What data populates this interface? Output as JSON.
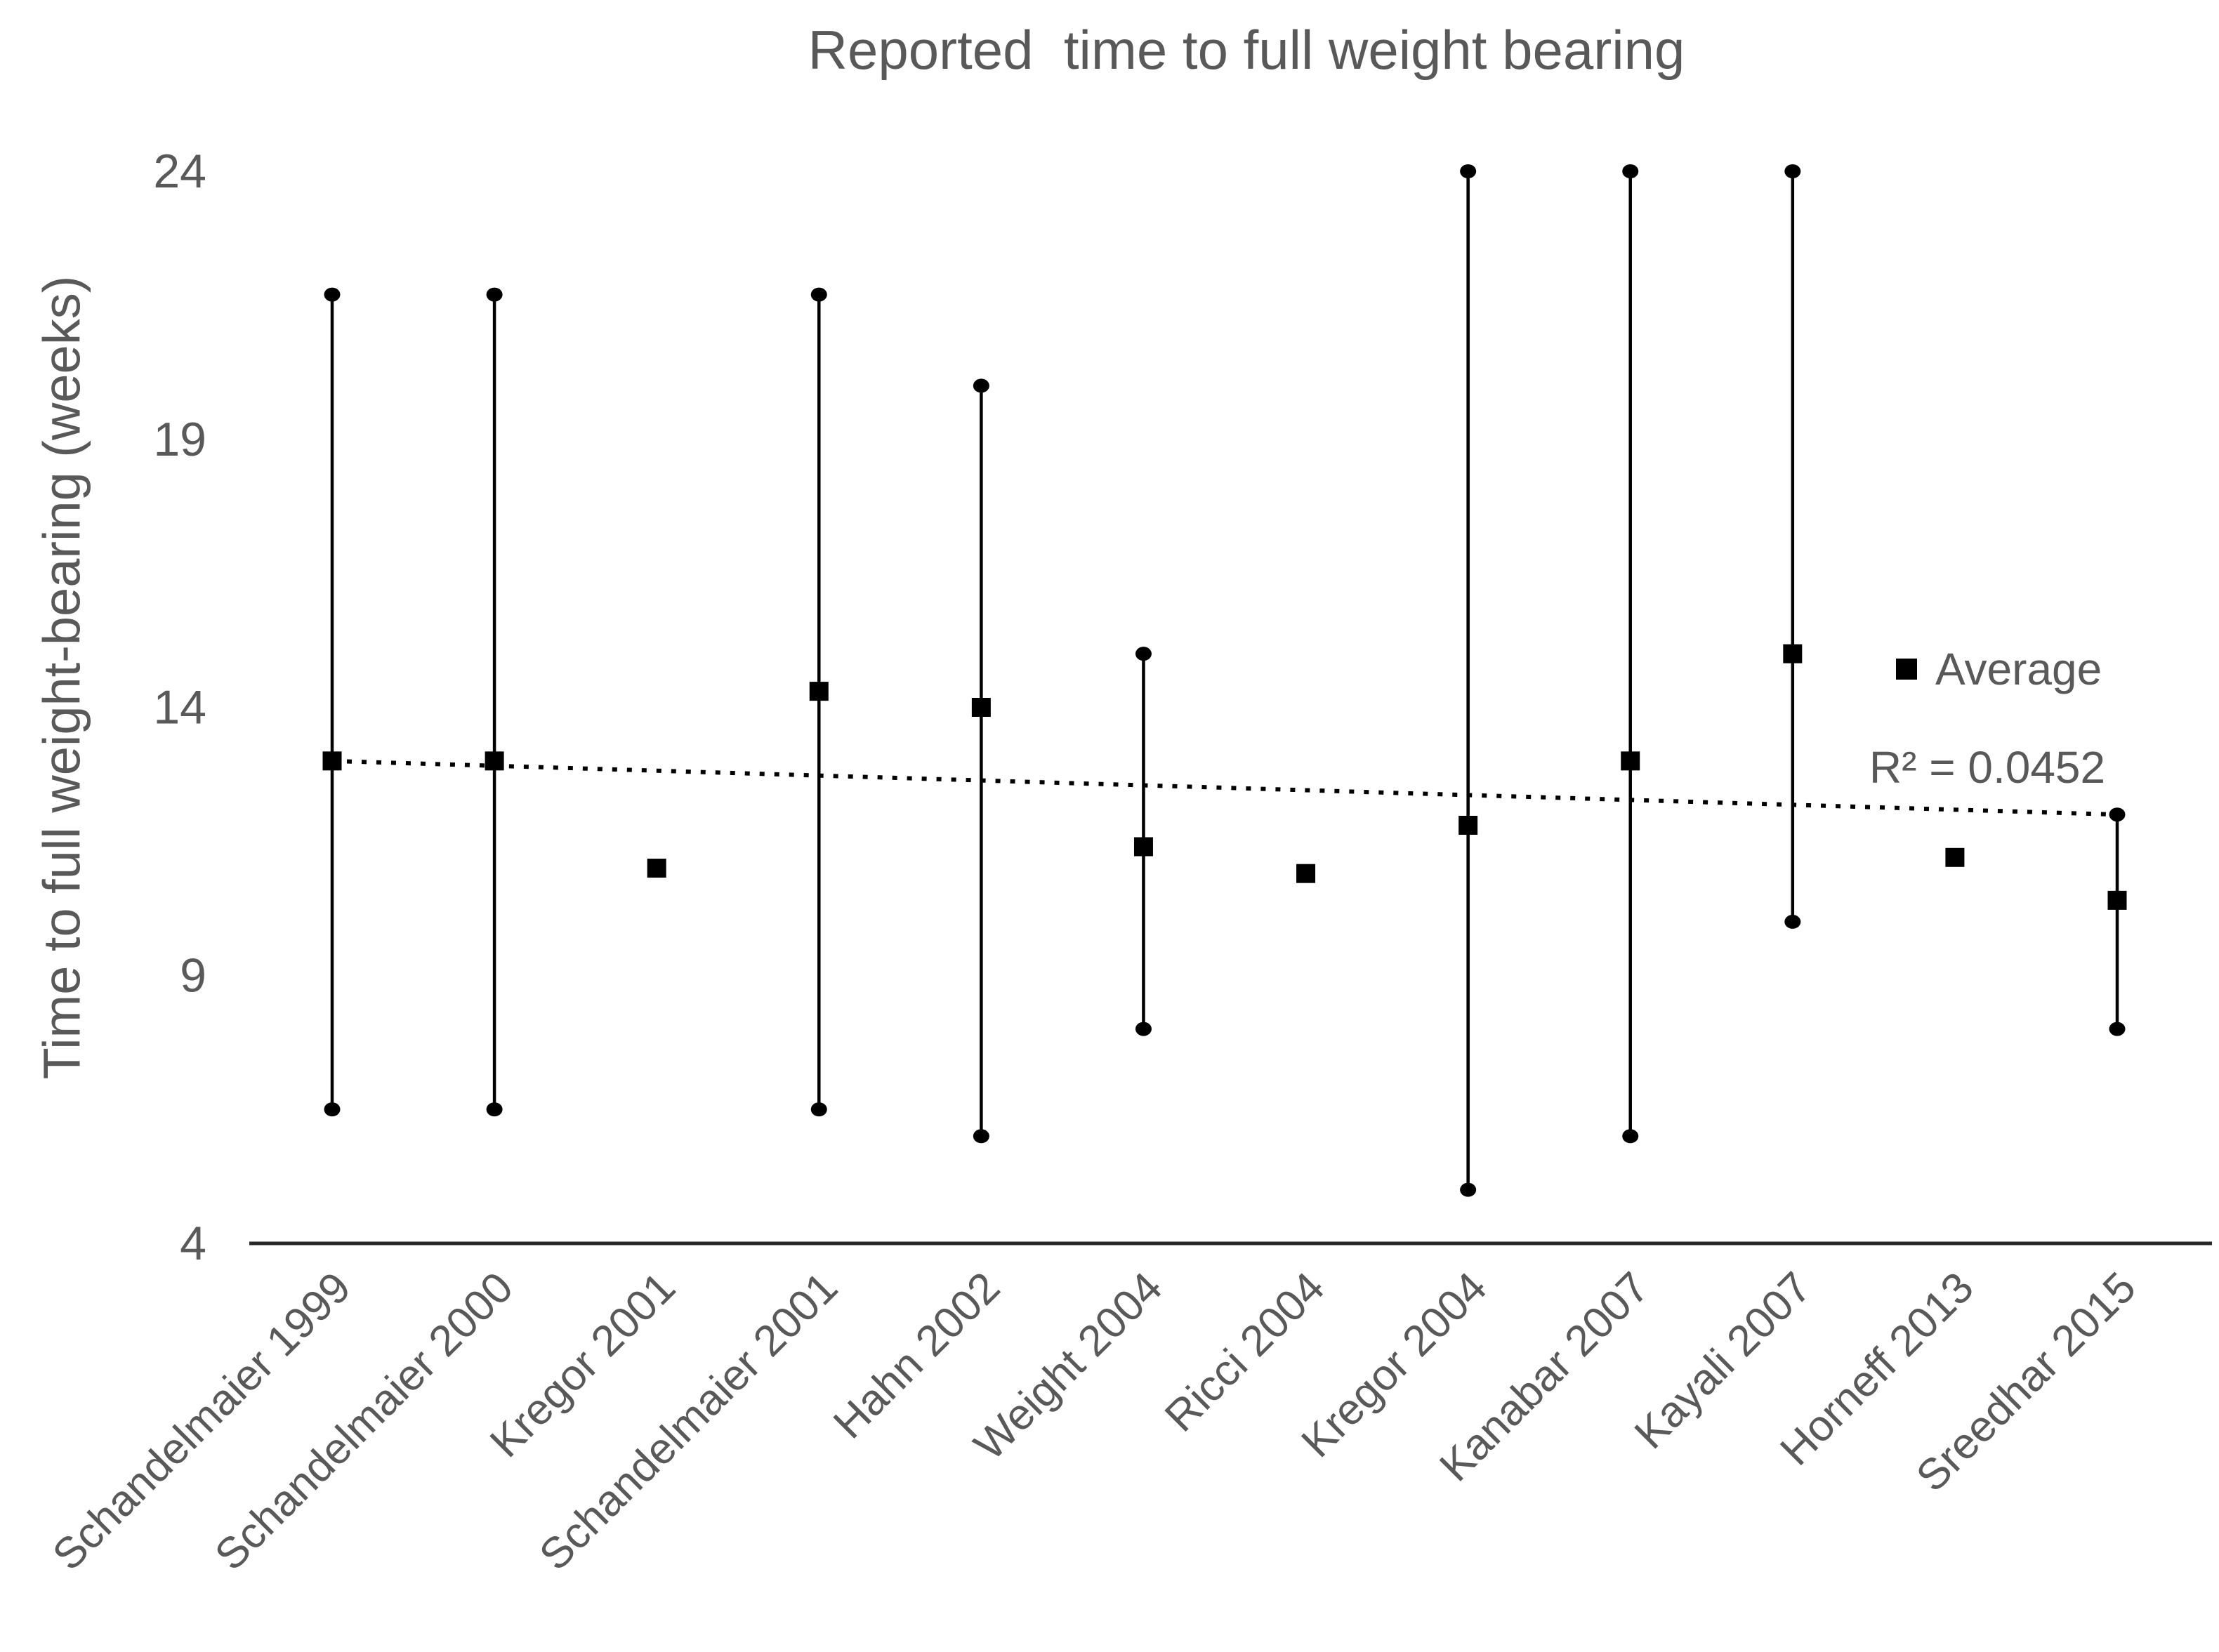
{
  "chart_data": {
    "type": "scatter",
    "title": "Reported  time to full weight bearing",
    "ylabel": "Time to full weight-bearing (weeks)",
    "xlabel": "",
    "ylim": [
      4,
      24
    ],
    "yticks": [
      24,
      19,
      14,
      9,
      4
    ],
    "grid": false,
    "legend_position": "right-middle",
    "categories": [
      "Schandelmaier 1999",
      "Schandelmaier 2000",
      "Kregor 2001",
      "Schandelmaier 2001",
      "Hahn 2002",
      "Weight 2004",
      "Ricci 2004",
      "Kregor 2004",
      "Kanabar 2007",
      "Kayali 2007",
      "Horneff 2013",
      "Sreedhar 2015"
    ],
    "series": [
      {
        "name": "Schandelmaier 1999",
        "min": 6.5,
        "max": 21.7,
        "avg": 13.0
      },
      {
        "name": "Schandelmaier 2000",
        "min": 6.5,
        "max": 21.7,
        "avg": 13.0
      },
      {
        "name": "Kregor 2001",
        "min": null,
        "max": null,
        "avg": 11.0
      },
      {
        "name": "Schandelmaier 2001",
        "min": 6.5,
        "max": 21.7,
        "avg": 14.3
      },
      {
        "name": "Hahn 2002",
        "min": 6.0,
        "max": 20.0,
        "avg": 14.0
      },
      {
        "name": "Weight 2004",
        "min": 8.0,
        "max": 15.0,
        "avg": 11.4
      },
      {
        "name": "Ricci 2004",
        "min": null,
        "max": null,
        "avg": 10.9
      },
      {
        "name": "Kregor 2004",
        "min": 5.0,
        "max": 24.0,
        "avg": 11.8
      },
      {
        "name": "Kanabar 2007",
        "min": 6.0,
        "max": 24.0,
        "avg": 13.0
      },
      {
        "name": "Kayali 2007",
        "min": 10.0,
        "max": 24.0,
        "avg": 15.0
      },
      {
        "name": "Horneff 2013",
        "min": null,
        "max": null,
        "avg": 11.2
      },
      {
        "name": "Sreedhar 2015",
        "min": 8.0,
        "max": 12.0,
        "avg": 10.4
      }
    ],
    "legend": {
      "label": "Average"
    },
    "annotation": "R² = 0.0452",
    "trendline": {
      "style": "dotted",
      "start_value": 13.0,
      "end_value": 12.0
    },
    "colors": {
      "marker": "#000000",
      "axis": "#262626",
      "text": "#595959"
    }
  }
}
